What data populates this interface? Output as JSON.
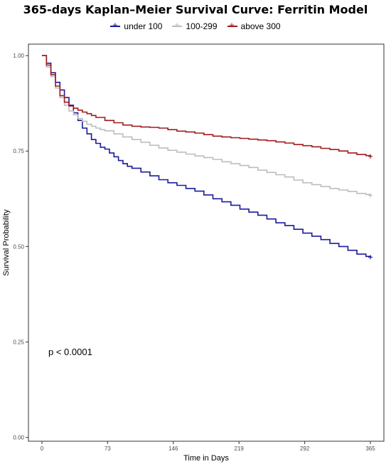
{
  "chart_data": {
    "type": "line",
    "title": "365-days Kaplan–Meier Survival Curve: Ferritin Model",
    "xlabel": "Time in Days",
    "ylabel": "Survival Probability",
    "xlim": [
      -15,
      380
    ],
    "ylim": [
      -0.01,
      1.03
    ],
    "x_ticks": [
      0,
      73,
      146,
      219,
      292,
      365
    ],
    "x_tick_labels": [
      "0",
      "73",
      "146",
      "219",
      "292",
      "365"
    ],
    "y_ticks": [
      0,
      0.25,
      0.5,
      0.75,
      1
    ],
    "y_tick_labels": [
      "0.00",
      "0.25",
      "0.50",
      "0.75",
      "1.00"
    ],
    "grid": false,
    "legend_position": "top",
    "annotation": "p < 0.0001",
    "series": [
      {
        "name": "under 100",
        "color": "#1a1a9e",
        "points": [
          [
            0,
            1.0
          ],
          [
            5,
            0.98
          ],
          [
            10,
            0.955
          ],
          [
            15,
            0.93
          ],
          [
            20,
            0.91
          ],
          [
            25,
            0.89
          ],
          [
            30,
            0.87
          ],
          [
            35,
            0.85
          ],
          [
            40,
            0.83
          ],
          [
            45,
            0.81
          ],
          [
            50,
            0.795
          ],
          [
            55,
            0.78
          ],
          [
            60,
            0.77
          ],
          [
            65,
            0.76
          ],
          [
            70,
            0.755
          ],
          [
            75,
            0.745
          ],
          [
            80,
            0.735
          ],
          [
            85,
            0.725
          ],
          [
            90,
            0.717
          ],
          [
            95,
            0.71
          ],
          [
            100,
            0.705
          ],
          [
            110,
            0.695
          ],
          [
            120,
            0.685
          ],
          [
            130,
            0.675
          ],
          [
            140,
            0.667
          ],
          [
            150,
            0.66
          ],
          [
            160,
            0.652
          ],
          [
            170,
            0.645
          ],
          [
            180,
            0.635
          ],
          [
            190,
            0.625
          ],
          [
            200,
            0.617
          ],
          [
            210,
            0.608
          ],
          [
            220,
            0.598
          ],
          [
            230,
            0.59
          ],
          [
            240,
            0.582
          ],
          [
            250,
            0.572
          ],
          [
            260,
            0.562
          ],
          [
            270,
            0.555
          ],
          [
            280,
            0.545
          ],
          [
            290,
            0.535
          ],
          [
            300,
            0.527
          ],
          [
            310,
            0.518
          ],
          [
            320,
            0.508
          ],
          [
            330,
            0.5
          ],
          [
            340,
            0.49
          ],
          [
            350,
            0.48
          ],
          [
            360,
            0.474
          ],
          [
            365,
            0.472
          ]
        ],
        "censor_x": 365
      },
      {
        "name": "100-299",
        "color": "#bdbdbd",
        "points": [
          [
            0,
            1.0
          ],
          [
            5,
            0.97
          ],
          [
            10,
            0.945
          ],
          [
            15,
            0.915
          ],
          [
            20,
            0.89
          ],
          [
            25,
            0.87
          ],
          [
            30,
            0.855
          ],
          [
            35,
            0.845
          ],
          [
            40,
            0.835
          ],
          [
            45,
            0.828
          ],
          [
            50,
            0.82
          ],
          [
            55,
            0.815
          ],
          [
            60,
            0.81
          ],
          [
            65,
            0.806
          ],
          [
            70,
            0.803
          ],
          [
            80,
            0.795
          ],
          [
            90,
            0.787
          ],
          [
            100,
            0.78
          ],
          [
            110,
            0.773
          ],
          [
            120,
            0.765
          ],
          [
            130,
            0.758
          ],
          [
            140,
            0.752
          ],
          [
            150,
            0.747
          ],
          [
            160,
            0.742
          ],
          [
            170,
            0.737
          ],
          [
            180,
            0.733
          ],
          [
            190,
            0.728
          ],
          [
            200,
            0.722
          ],
          [
            210,
            0.717
          ],
          [
            220,
            0.712
          ],
          [
            230,
            0.707
          ],
          [
            240,
            0.7
          ],
          [
            250,
            0.694
          ],
          [
            260,
            0.688
          ],
          [
            270,
            0.682
          ],
          [
            280,
            0.674
          ],
          [
            290,
            0.667
          ],
          [
            300,
            0.662
          ],
          [
            310,
            0.657
          ],
          [
            320,
            0.652
          ],
          [
            330,
            0.648
          ],
          [
            340,
            0.644
          ],
          [
            350,
            0.639
          ],
          [
            360,
            0.636
          ],
          [
            365,
            0.634
          ]
        ],
        "censor_x": 365
      },
      {
        "name": "above 300",
        "color": "#9e1b1b",
        "points": [
          [
            0,
            1.0
          ],
          [
            5,
            0.975
          ],
          [
            10,
            0.95
          ],
          [
            15,
            0.92
          ],
          [
            20,
            0.895
          ],
          [
            25,
            0.878
          ],
          [
            30,
            0.868
          ],
          [
            35,
            0.862
          ],
          [
            40,
            0.857
          ],
          [
            45,
            0.852
          ],
          [
            50,
            0.848
          ],
          [
            55,
            0.843
          ],
          [
            60,
            0.838
          ],
          [
            70,
            0.83
          ],
          [
            80,
            0.824
          ],
          [
            90,
            0.818
          ],
          [
            100,
            0.815
          ],
          [
            110,
            0.813
          ],
          [
            120,
            0.812
          ],
          [
            130,
            0.81
          ],
          [
            140,
            0.806
          ],
          [
            150,
            0.802
          ],
          [
            160,
            0.8
          ],
          [
            170,
            0.797
          ],
          [
            180,
            0.793
          ],
          [
            190,
            0.789
          ],
          [
            200,
            0.787
          ],
          [
            210,
            0.785
          ],
          [
            220,
            0.783
          ],
          [
            230,
            0.781
          ],
          [
            240,
            0.779
          ],
          [
            250,
            0.777
          ],
          [
            260,
            0.774
          ],
          [
            270,
            0.771
          ],
          [
            280,
            0.767
          ],
          [
            290,
            0.764
          ],
          [
            300,
            0.761
          ],
          [
            310,
            0.757
          ],
          [
            320,
            0.754
          ],
          [
            330,
            0.75
          ],
          [
            340,
            0.745
          ],
          [
            350,
            0.741
          ],
          [
            360,
            0.738
          ],
          [
            365,
            0.736
          ]
        ],
        "censor_x": 365
      }
    ]
  }
}
